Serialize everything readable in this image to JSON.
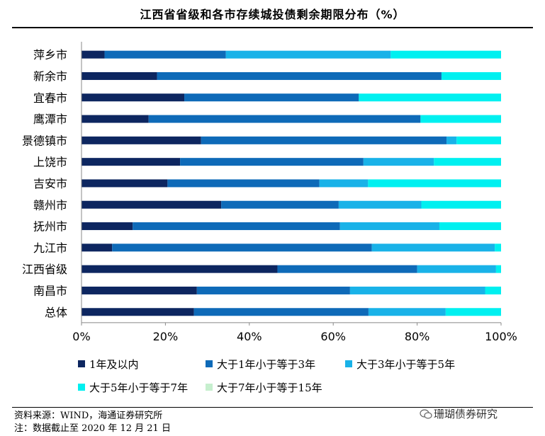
{
  "chart_data": {
    "type": "bar",
    "orientation": "horizontal",
    "stacked": true,
    "title": "江西省省级和各市存续城投债剩余期限分布（%）",
    "categories": [
      "萍乡市",
      "新余市",
      "宜春市",
      "鹰潭市",
      "景德镇市",
      "上饶市",
      "吉安市",
      "赣州市",
      "抚州市",
      "九江市",
      "江西省级",
      "南昌市",
      "总体"
    ],
    "series": [
      {
        "name": "1年及以内",
        "color": "#0d2660",
        "values": [
          5.5,
          18.0,
          24.5,
          16.0,
          28.5,
          23.5,
          20.5,
          33.3,
          12.2,
          7.3,
          46.7,
          27.5,
          26.8
        ]
      },
      {
        "name": "大于1年小于等于3年",
        "color": "#0e6ab8",
        "values": [
          28.9,
          67.8,
          41.6,
          64.8,
          58.5,
          43.7,
          36.2,
          28.0,
          49.4,
          61.9,
          33.3,
          36.5,
          41.6
        ]
      },
      {
        "name": "大于3年小于等于5年",
        "color": "#19b2e8",
        "values": [
          39.3,
          0.0,
          0.0,
          0.0,
          2.4,
          16.8,
          11.6,
          19.7,
          23.7,
          29.3,
          18.8,
          32.2,
          18.4
        ]
      },
      {
        "name": "大于5年小于等于7年",
        "color": "#00f0f0",
        "values": [
          26.3,
          14.2,
          33.9,
          19.2,
          10.6,
          16.0,
          31.7,
          19.0,
          14.7,
          1.5,
          1.2,
          3.8,
          13.2
        ]
      },
      {
        "name": "大于7年小于等于15年",
        "color": "#c6efce",
        "values": [
          0,
          0,
          0,
          0,
          0,
          0,
          0,
          0,
          0,
          0,
          0,
          0,
          0
        ]
      }
    ],
    "xlim": [
      0,
      100
    ],
    "xticks": [
      "0%",
      "20%",
      "40%",
      "60%",
      "80%",
      "100%"
    ],
    "xlabel": "",
    "ylabel": "",
    "grid": false,
    "legend_position": "bottom"
  },
  "footer": {
    "source": "资料来源：WIND，海通证券研究所",
    "note": "注：数据截止至 2020 年 12 月 21 日",
    "watermark": "珊瑚债券研究"
  }
}
